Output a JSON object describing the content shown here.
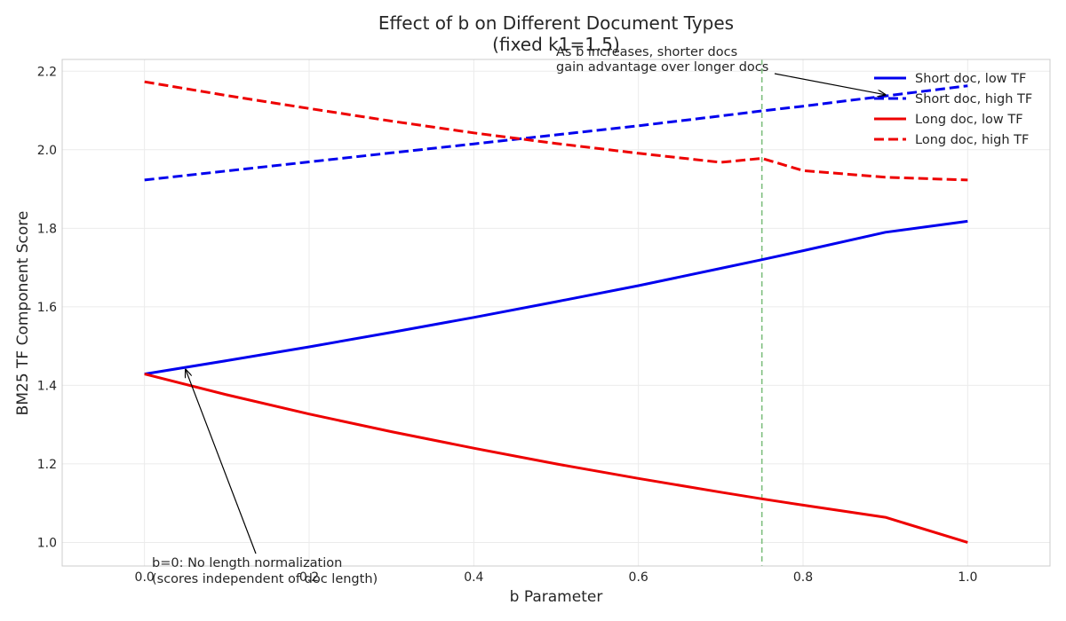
{
  "chart_data": {
    "type": "line",
    "title": "Effect of b on Different Document Types",
    "subtitle": "(fixed k1=1.5)",
    "xlabel": "b Parameter",
    "ylabel": "BM25 TF Component Score",
    "xlim": [
      -0.1,
      1.1
    ],
    "ylim": [
      0.94,
      2.23
    ],
    "xticks": [
      0.0,
      0.2,
      0.4,
      0.6,
      0.8,
      1.0
    ],
    "xtick_labels": [
      "0.0",
      "0.2",
      "0.4",
      "0.6",
      "0.8",
      "1.0"
    ],
    "yticks": [
      1.0,
      1.2,
      1.4,
      1.6,
      1.8,
      2.0,
      2.2
    ],
    "ytick_labels": [
      "1.0",
      "1.2",
      "1.4",
      "1.6",
      "1.8",
      "2.0",
      "2.2"
    ],
    "grid": true,
    "legend_position": "top-right",
    "x": [
      0.0,
      0.1,
      0.2,
      0.3,
      0.4,
      0.5,
      0.6,
      0.7,
      0.75,
      0.8,
      0.9,
      1.0
    ],
    "series": [
      {
        "name": "Short doc, low TF",
        "color": "#0000ee",
        "style": "solid",
        "values": [
          1.429,
          1.463,
          1.498,
          1.535,
          1.573,
          1.613,
          1.654,
          1.698,
          1.72,
          1.743,
          1.79,
          1.818
        ]
      },
      {
        "name": "Short doc, high TF",
        "color": "#0000ee",
        "style": "dashed",
        "values": [
          1.923,
          1.946,
          1.969,
          1.992,
          2.015,
          2.038,
          2.061,
          2.086,
          2.099,
          2.111,
          2.137,
          2.163
        ]
      },
      {
        "name": "Long doc, low TF",
        "color": "#ee0000",
        "style": "solid",
        "values": [
          1.429,
          1.376,
          1.327,
          1.282,
          1.24,
          1.2,
          1.163,
          1.128,
          1.111,
          1.095,
          1.064,
          1.0
        ]
      },
      {
        "name": "Long doc, high TF",
        "color": "#ee0000",
        "style": "dashed",
        "values": [
          2.173,
          2.138,
          2.105,
          2.073,
          2.043,
          2.016,
          1.991,
          1.968,
          1.978,
          1.947,
          1.93,
          1.923
        ]
      }
    ],
    "reference_line": {
      "x": 0.75,
      "color": "#7fbf7f",
      "style": "dashed"
    },
    "annotations": [
      {
        "lines": [
          "As b increases, shorter docs",
          "gain advantage over longer docs"
        ],
        "point": [
          0.9,
          2.14
        ]
      },
      {
        "lines": [
          "b=0: No length normalization",
          "(scores independent of doc length)"
        ],
        "point": [
          0.05,
          1.44
        ]
      }
    ]
  }
}
